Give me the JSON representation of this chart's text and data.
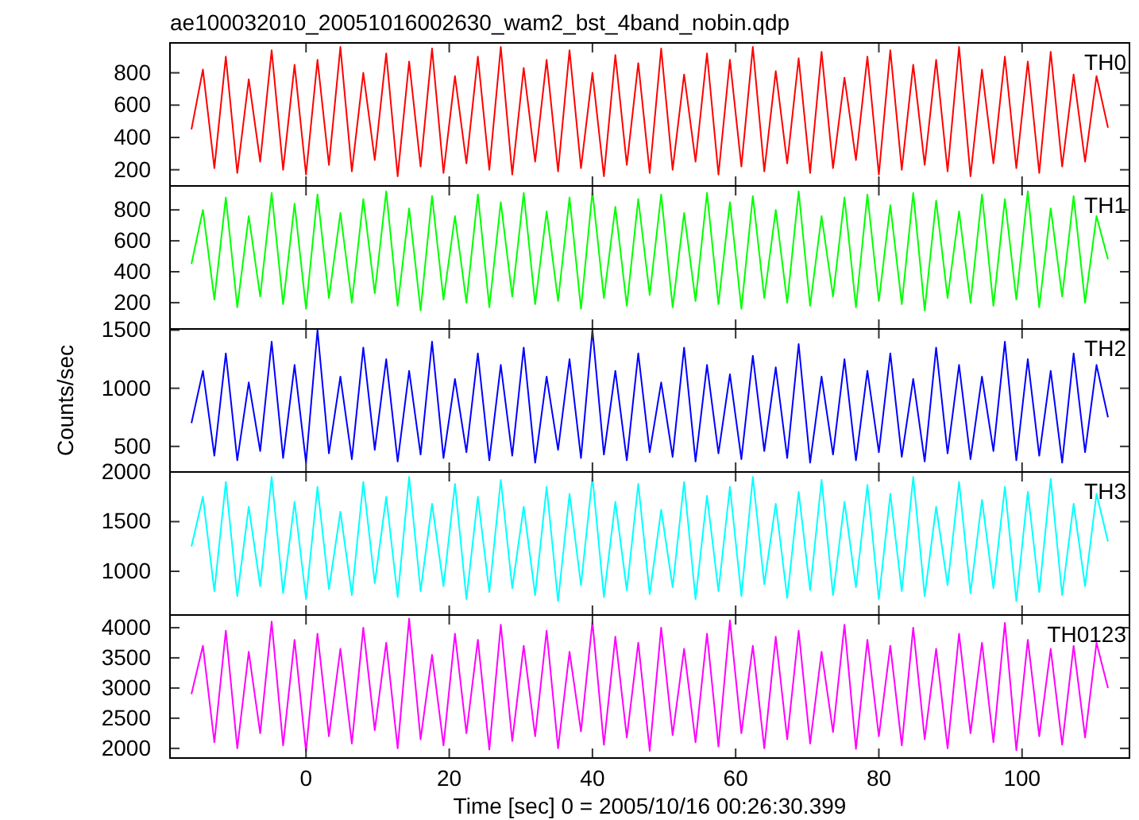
{
  "chart_data": [
    {
      "type": "line",
      "title": "ae100032010_20051016002630_wam2_bst_4band_nobin.qdp",
      "legend": "top right",
      "tick_labels": "y",
      "xlim": [
        -19,
        115
      ],
      "xticks": [
        0,
        20,
        40,
        60,
        80,
        100
      ],
      "ylim": [
        100,
        985
      ],
      "yticks": [
        200,
        400,
        600,
        800
      ],
      "x": [
        -16,
        -14.4,
        -12.8,
        -11.2,
        -9.6,
        -8,
        -6.4,
        -4.8,
        -3.2,
        -1.6,
        0,
        1.6,
        3.2,
        4.8,
        6.4,
        8,
        9.6,
        11.2,
        12.8,
        14.4,
        16,
        17.6,
        19.2,
        20.8,
        22.4,
        24,
        25.6,
        27.2,
        28.8,
        30.4,
        32,
        33.6,
        35.2,
        36.8,
        38.4,
        40,
        41.6,
        43.2,
        44.8,
        46.4,
        48,
        49.6,
        51.2,
        52.8,
        54.4,
        56,
        57.6,
        59.2,
        60.8,
        62.4,
        64,
        65.6,
        67.2,
        68.8,
        70.4,
        72,
        73.6,
        75.2,
        76.8,
        78.4,
        80,
        81.6,
        83.2,
        84.8,
        86.4,
        88,
        89.6,
        91.2,
        92.8,
        94.4,
        96,
        97.6,
        99.2,
        100.8,
        102.4,
        104,
        105.6,
        107.2,
        108.8,
        110.4,
        112
      ],
      "series": [
        {
          "name": "TH0",
          "color": "#ff0000",
          "values": [
            450,
            820,
            210,
            900,
            180,
            760,
            250,
            940,
            200,
            850,
            170,
            880,
            230,
            960,
            190,
            800,
            260,
            920,
            160,
            870,
            220,
            950,
            180,
            780,
            240,
            900,
            200,
            960,
            170,
            830,
            250,
            880,
            190,
            940,
            210,
            800,
            160,
            910,
            230,
            860,
            180,
            950,
            200,
            790,
            250,
            920,
            170,
            880,
            220,
            960,
            190,
            810,
            240,
            890,
            180,
            930,
            210,
            770,
            260,
            900,
            170,
            940,
            200,
            850,
            230,
            880,
            190,
            960,
            160,
            820,
            240,
            900,
            210,
            870,
            180,
            930,
            220,
            790,
            250,
            780,
            460
          ]
        }
      ]
    },
    {
      "type": "line",
      "legend": "top right",
      "tick_labels": "y",
      "xlim": [
        -19,
        115
      ],
      "xticks": [
        0,
        20,
        40,
        60,
        80,
        100
      ],
      "ylim": [
        30,
        955
      ],
      "yticks": [
        200,
        400,
        600,
        800
      ],
      "x": [
        -16,
        -14.4,
        -12.8,
        -11.2,
        -9.6,
        -8,
        -6.4,
        -4.8,
        -3.2,
        -1.6,
        0,
        1.6,
        3.2,
        4.8,
        6.4,
        8,
        9.6,
        11.2,
        12.8,
        14.4,
        16,
        17.6,
        19.2,
        20.8,
        22.4,
        24,
        25.6,
        27.2,
        28.8,
        30.4,
        32,
        33.6,
        35.2,
        36.8,
        38.4,
        40,
        41.6,
        43.2,
        44.8,
        46.4,
        48,
        49.6,
        51.2,
        52.8,
        54.4,
        56,
        57.6,
        59.2,
        60.8,
        62.4,
        64,
        65.6,
        67.2,
        68.8,
        70.4,
        72,
        73.6,
        75.2,
        76.8,
        78.4,
        80,
        81.6,
        83.2,
        84.8,
        86.4,
        88,
        89.6,
        91.2,
        92.8,
        94.4,
        96,
        97.6,
        99.2,
        100.8,
        102.4,
        104,
        105.6,
        107.2,
        108.8,
        110.4,
        112
      ],
      "series": [
        {
          "name": "TH1",
          "color": "#00ff00",
          "values": [
            450,
            800,
            220,
            880,
            170,
            760,
            240,
            910,
            190,
            840,
            160,
            900,
            230,
            780,
            200,
            870,
            260,
            920,
            180,
            810,
            150,
            890,
            220,
            760,
            200,
            900,
            170,
            850,
            240,
            910,
            190,
            790,
            210,
            880,
            160,
            920,
            230,
            820,
            180,
            870,
            250,
            900,
            170,
            780,
            210,
            910,
            190,
            850,
            160,
            890,
            230,
            800,
            200,
            920,
            180,
            760,
            240,
            880,
            170,
            900,
            210,
            830,
            190,
            910,
            150,
            860,
            230,
            790,
            200,
            900,
            180,
            870,
            220,
            920,
            170,
            810,
            240,
            890,
            200,
            760,
            480
          ]
        }
      ]
    },
    {
      "type": "line",
      "legend": "top right",
      "tick_labels": "y",
      "ylabel": "Counts/sec",
      "xlim": [
        -19,
        115
      ],
      "xticks": [
        0,
        20,
        40,
        60,
        80,
        100
      ],
      "ylim": [
        280,
        1510
      ],
      "yticks": [
        500,
        1000,
        1500
      ],
      "x": [
        -16,
        -14.4,
        -12.8,
        -11.2,
        -9.6,
        -8,
        -6.4,
        -4.8,
        -3.2,
        -1.6,
        0,
        1.6,
        3.2,
        4.8,
        6.4,
        8,
        9.6,
        11.2,
        12.8,
        14.4,
        16,
        17.6,
        19.2,
        20.8,
        22.4,
        24,
        25.6,
        27.2,
        28.8,
        30.4,
        32,
        33.6,
        35.2,
        36.8,
        38.4,
        40,
        41.6,
        43.2,
        44.8,
        46.4,
        48,
        49.6,
        51.2,
        52.8,
        54.4,
        56,
        57.6,
        59.2,
        60.8,
        62.4,
        64,
        65.6,
        67.2,
        68.8,
        70.4,
        72,
        73.6,
        75.2,
        76.8,
        78.4,
        80,
        81.6,
        83.2,
        84.8,
        86.4,
        88,
        89.6,
        91.2,
        92.8,
        94.4,
        96,
        97.6,
        99.2,
        100.8,
        102.4,
        104,
        105.6,
        107.2,
        108.8,
        110.4,
        112
      ],
      "series": [
        {
          "name": "TH2",
          "color": "#0000ff",
          "values": [
            700,
            1150,
            420,
            1300,
            380,
            1050,
            460,
            1400,
            400,
            1200,
            360,
            1500,
            440,
            1100,
            390,
            1350,
            470,
            1250,
            370,
            1150,
            430,
            1400,
            400,
            1080,
            450,
            1300,
            380,
            1200,
            420,
            1350,
            360,
            1100,
            470,
            1250,
            400,
            1500,
            430,
            1150,
            380,
            1300,
            450,
            1050,
            410,
            1350,
            370,
            1200,
            440,
            1120,
            390,
            1280,
            460,
            1180,
            400,
            1380,
            360,
            1100,
            430,
            1250,
            380,
            1150,
            450,
            1300,
            410,
            1080,
            370,
            1350,
            440,
            1200,
            390,
            1100,
            460,
            1400,
            380,
            1250,
            420,
            1150,
            360,
            1300,
            450,
            1200,
            750
          ]
        }
      ]
    },
    {
      "type": "line",
      "legend": "top right",
      "tick_labels": "y",
      "xlim": [
        -19,
        115
      ],
      "xticks": [
        0,
        20,
        40,
        60,
        80,
        100
      ],
      "ylim": [
        560,
        2000
      ],
      "yticks": [
        1000,
        1500,
        2000
      ],
      "x": [
        -16,
        -14.4,
        -12.8,
        -11.2,
        -9.6,
        -8,
        -6.4,
        -4.8,
        -3.2,
        -1.6,
        0,
        1.6,
        3.2,
        4.8,
        6.4,
        8,
        9.6,
        11.2,
        12.8,
        14.4,
        16,
        17.6,
        19.2,
        20.8,
        22.4,
        24,
        25.6,
        27.2,
        28.8,
        30.4,
        32,
        33.6,
        35.2,
        36.8,
        38.4,
        40,
        41.6,
        43.2,
        44.8,
        46.4,
        48,
        49.6,
        51.2,
        52.8,
        54.4,
        56,
        57.6,
        59.2,
        60.8,
        62.4,
        64,
        65.6,
        67.2,
        68.8,
        70.4,
        72,
        73.6,
        75.2,
        76.8,
        78.4,
        80,
        81.6,
        83.2,
        84.8,
        86.4,
        88,
        89.6,
        91.2,
        92.8,
        94.4,
        96,
        97.6,
        99.2,
        100.8,
        102.4,
        104,
        105.6,
        107.2,
        108.8,
        110.4,
        112
      ],
      "series": [
        {
          "name": "TH3",
          "color": "#00ffff",
          "values": [
            1250,
            1750,
            800,
            1900,
            750,
            1650,
            850,
            1950,
            780,
            1700,
            720,
            1850,
            820,
            1600,
            760,
            1900,
            880,
            1750,
            740,
            1950,
            800,
            1680,
            850,
            1880,
            720,
            1750,
            790,
            1920,
            830,
            1650,
            760,
            1850,
            700,
            1780,
            860,
            1950,
            740,
            1700,
            810,
            1880,
            770,
            1620,
            840,
            1900,
            720,
            1760,
            800,
            1850,
            750,
            1950,
            870,
            1680,
            730,
            1800,
            810,
            1920,
            760,
            1700,
            840,
            1870,
            720,
            1780,
            800,
            1950,
            750,
            1650,
            860,
            1900,
            780,
            1720,
            830,
            1850,
            700,
            1800,
            790,
            1930,
            760,
            1680,
            850,
            1780,
            1300
          ]
        }
      ]
    },
    {
      "type": "line",
      "legend": "top right",
      "xlabel": "Time [sec] 0 = 2005/10/16 00:26:30.399",
      "xlim": [
        -19,
        115
      ],
      "xticks": [
        0,
        20,
        40,
        60,
        80,
        100
      ],
      "ylim": [
        1840,
        4210
      ],
      "yticks": [
        2000,
        2500,
        3000,
        3500,
        4000
      ],
      "x": [
        -16,
        -14.4,
        -12.8,
        -11.2,
        -9.6,
        -8,
        -6.4,
        -4.8,
        -3.2,
        -1.6,
        0,
        1.6,
        3.2,
        4.8,
        6.4,
        8,
        9.6,
        11.2,
        12.8,
        14.4,
        16,
        17.6,
        19.2,
        20.8,
        22.4,
        24,
        25.6,
        27.2,
        28.8,
        30.4,
        32,
        33.6,
        35.2,
        36.8,
        38.4,
        40,
        41.6,
        43.2,
        44.8,
        46.4,
        48,
        49.6,
        51.2,
        52.8,
        54.4,
        56,
        57.6,
        59.2,
        60.8,
        62.4,
        64,
        65.6,
        67.2,
        68.8,
        70.4,
        72,
        73.6,
        75.2,
        76.8,
        78.4,
        80,
        81.6,
        83.2,
        84.8,
        86.4,
        88,
        89.6,
        91.2,
        92.8,
        94.4,
        96,
        97.6,
        99.2,
        100.8,
        102.4,
        104,
        105.6,
        107.2,
        108.8,
        110.4,
        112
      ],
      "series": [
        {
          "name": "TH0123",
          "color": "#ff00ff",
          "values": [
            2900,
            3700,
            2100,
            3950,
            2000,
            3600,
            2250,
            4100,
            2050,
            3800,
            1950,
            3900,
            2200,
            3650,
            2080,
            4000,
            2300,
            3750,
            2000,
            4150,
            2150,
            3550,
            2050,
            3900,
            2250,
            3800,
            1980,
            4050,
            2120,
            3700,
            2200,
            3950,
            2000,
            3600,
            2280,
            4100,
            2060,
            3850,
            2180,
            3750,
            1960,
            4000,
            2220,
            3650,
            2100,
            3900,
            2030,
            4120,
            2250,
            3700,
            2000,
            3850,
            2150,
            3950,
            2080,
            3600,
            2270,
            4050,
            1990,
            3800,
            2200,
            3700,
            2050,
            4000,
            2150,
            3650,
            2000,
            3900,
            2250,
            3750,
            2100,
            4080,
            1970,
            3800,
            2200,
            3650,
            2060,
            3700,
            2180,
            3750,
            3000
          ]
        }
      ]
    }
  ]
}
